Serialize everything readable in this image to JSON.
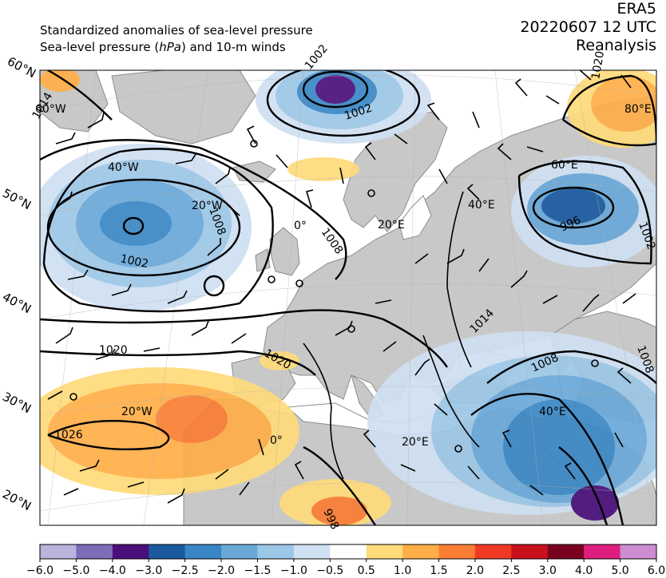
{
  "header": {
    "left_line1": "Standardized anomalies of sea-level pressure",
    "left_line2_pre": "Sea-level pressure (",
    "left_line2_unit": "hPa",
    "left_line2_post": ") and 10-m winds",
    "right_line1": "ERA5",
    "right_line2": "20220607 12 UTC",
    "right_line3": "Reanalysis"
  },
  "map": {
    "lat_labels": [
      "60°N",
      "50°N",
      "40°N",
      "30°N",
      "20°N"
    ],
    "lon_labels": [
      "60°W",
      "40°W",
      "20°W",
      "0°",
      "20°E",
      "40°E",
      "60°E",
      "80°E",
      "20°W",
      "0°",
      "20°E",
      "40°E"
    ],
    "isobar_labels": [
      "1002",
      "1002",
      "1008",
      "1002",
      "1008",
      "1020",
      "1020",
      "1026",
      "996",
      "1002",
      "1014",
      "1008",
      "1008",
      "1014",
      "1020",
      "998"
    ],
    "colors": {
      "land": "#c8c8c8",
      "ocean": "#ffffff"
    }
  },
  "colorbar": {
    "ticks": [
      "−6.0",
      "−5.0",
      "−4.0",
      "−3.0",
      "−2.5",
      "−2.0",
      "−1.5",
      "−1.0",
      "−0.5",
      "0.5",
      "1.0",
      "1.5",
      "2.0",
      "2.5",
      "3.0",
      "4.0",
      "5.0",
      "6.0"
    ],
    "colors": [
      "#b8b4dc",
      "#7e6cb8",
      "#4a0f7a",
      "#1c5aa0",
      "#3a86c4",
      "#6aa8d8",
      "#9cc6e6",
      "#cfe0f2",
      "#ffffff",
      "#ffdb7a",
      "#ffae48",
      "#f97e34",
      "#ee3a24",
      "#c8101c",
      "#7a0020",
      "#de1f80",
      "#cc8ed0"
    ]
  }
}
